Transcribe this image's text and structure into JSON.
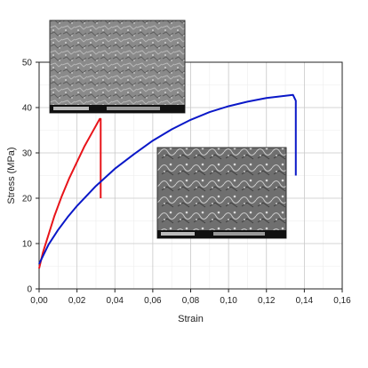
{
  "chart_data": {
    "type": "line",
    "title": "",
    "xlabel": "Strain",
    "ylabel": "Stress (MPa)",
    "xlim": [
      0,
      0.16
    ],
    "ylim": [
      0,
      50
    ],
    "x_ticks": [
      0,
      0.02,
      0.04,
      0.06,
      0.08,
      0.1,
      0.12,
      0.14,
      0.16
    ],
    "x_tick_labels": [
      "0,00",
      "0,02",
      "0,04",
      "0,06",
      "0,08",
      "0,10",
      "0,12",
      "0,14",
      "0,16"
    ],
    "y_ticks": [
      0,
      10,
      20,
      30,
      40,
      50
    ],
    "y_tick_labels": [
      "0",
      "10",
      "20",
      "30",
      "40",
      "50"
    ],
    "grid": true,
    "series": [
      {
        "color": "#e8141a",
        "x": [
          0.0,
          0.002,
          0.005,
          0.008,
          0.012,
          0.016,
          0.02,
          0.024,
          0.028,
          0.032,
          0.0325,
          0.0325
        ],
        "y": [
          4.5,
          8.0,
          12.0,
          16.0,
          20.5,
          24.5,
          28.0,
          31.5,
          34.5,
          37.5,
          37.5,
          20.0
        ]
      },
      {
        "color": "#0a18c8",
        "x": [
          0.0,
          0.005,
          0.01,
          0.015,
          0.02,
          0.03,
          0.04,
          0.05,
          0.06,
          0.07,
          0.08,
          0.09,
          0.1,
          0.11,
          0.12,
          0.13,
          0.134,
          0.1355,
          0.1355
        ],
        "y": [
          5.5,
          9.8,
          13.0,
          15.8,
          18.3,
          22.7,
          26.5,
          29.7,
          32.7,
          35.2,
          37.3,
          39.0,
          40.3,
          41.3,
          42.1,
          42.6,
          42.8,
          41.5,
          25.0
        ]
      }
    ],
    "insets": [
      {
        "type": "sem-micrograph",
        "label": "upper-left inset"
      },
      {
        "type": "sem-micrograph",
        "label": "center-right inset"
      }
    ]
  }
}
